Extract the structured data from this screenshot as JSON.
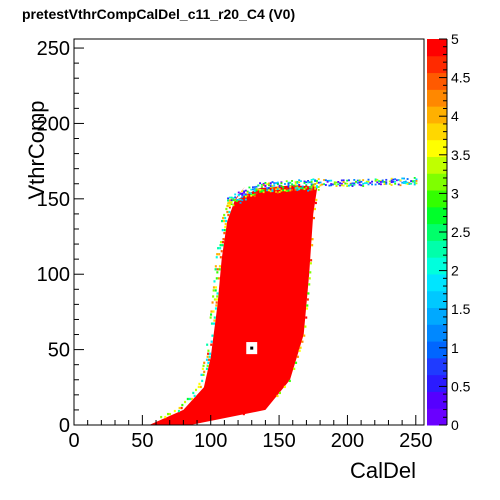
{
  "chart_data": {
    "type": "heatmap",
    "title": "pretestVthrCompCalDel_c11_r20_C4 (V0)",
    "xlabel": "CalDel",
    "ylabel": "VthrComp",
    "xlim": [
      0,
      256
    ],
    "ylim": [
      0,
      256
    ],
    "x_ticks": [
      "0",
      "50",
      "100",
      "150",
      "200",
      "250"
    ],
    "y_ticks": [
      "0",
      "50",
      "100",
      "150",
      "200",
      "250"
    ],
    "z_range": [
      0,
      5
    ],
    "z_ticks": [
      "0",
      "0.5",
      "1",
      "1.5",
      "2",
      "2.5",
      "3",
      "3.5",
      "4",
      "4.5",
      "5"
    ],
    "grid": false,
    "palette": [
      "#6a00ff",
      "#5500ff",
      "#2b1bff",
      "#1f3bff",
      "#0066ff",
      "#0088ff",
      "#00a9ff",
      "#00c8ff",
      "#00e5ff",
      "#00ffdd",
      "#00ffaa",
      "#00ff6a",
      "#00ff2a",
      "#33ff00",
      "#7fff00",
      "#c0ff00",
      "#ffff00",
      "#ffd700",
      "#ffb000",
      "#ff8800",
      "#ff5a00",
      "#ff2a00",
      "#ff0000"
    ],
    "main_region": {
      "description_value": 5,
      "left_edge": [
        [
          55,
          0
        ],
        [
          80,
          10
        ],
        [
          95,
          25
        ],
        [
          100,
          45
        ],
        [
          105,
          80
        ],
        [
          108,
          110
        ],
        [
          112,
          135
        ],
        [
          118,
          150
        ],
        [
          125,
          158
        ]
      ],
      "right_edge": [
        [
          85,
          0
        ],
        [
          140,
          10
        ],
        [
          158,
          30
        ],
        [
          168,
          60
        ],
        [
          172,
          100
        ],
        [
          175,
          140
        ],
        [
          178,
          158
        ]
      ],
      "top_fringe": [
        [
          118,
          152
        ],
        [
          135,
          160
        ],
        [
          160,
          162
        ],
        [
          185,
          160
        ],
        [
          205,
          161
        ],
        [
          240,
          163
        ],
        [
          250,
          163
        ]
      ]
    },
    "empty_bin": {
      "x": [
        126,
        134
      ],
      "y": [
        47,
        55
      ],
      "marker_x": 130,
      "marker_y": 51
    }
  }
}
